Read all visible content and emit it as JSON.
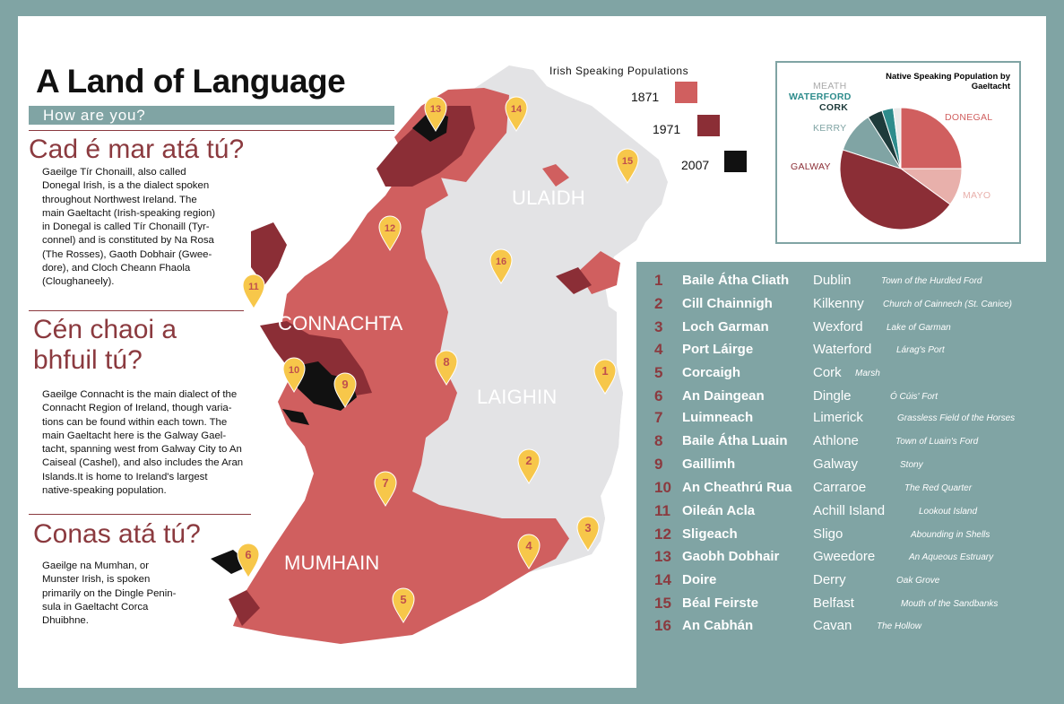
{
  "title": "A Land of Language",
  "subtitle": "How are you?",
  "sections": [
    {
      "heading_lines": [
        "Cad é mar atá tú?"
      ],
      "body_lines": [
        "Gaeilge Tír Chonaill, also called",
        "Donegal Irish, is a the dialect spoken",
        "throughout Northwest Ireland. The",
        "main Gaeltacht (Irish-speaking region)",
        "in Donegal is called Tír Chonaill (Tyr-",
        "connel) and is constituted by Na Rosa",
        "(The Rosses), Gaoth Dobhair (Gwee-",
        "dore), and Cloch Cheann Fhaola",
        "(Cloughaneely)."
      ]
    },
    {
      "heading_lines": [
        "Cén chaoi a",
        "bhfuil tú?"
      ],
      "body_lines": [
        "Gaeilge Connacht is the main dialect of the",
        "Connacht Region of Ireland, though varia-",
        "tions can be found within each town. The",
        "main Gaeltacht here is the Galway Gael-",
        "tacht, spanning west from Galway City to An",
        "Caiseal (Cashel), and also includes the Aran",
        "Islands.It is home to Ireland's largest",
        "native-speaking population."
      ]
    },
    {
      "heading_lines": [
        "Conas atá tú?"
      ],
      "body_lines": [
        "Gaeilge na Mumhan, or",
        "Munster Irish, is spoken",
        "primarily on the Dingle Penin-",
        "sula in Gaeltacht Corca",
        "Dhuibhne."
      ]
    }
  ],
  "regions": {
    "ulster": "ULAIDH",
    "connacht": "CONNACHTA",
    "leinster": "LAIGHIN",
    "munster": "MUMHAIN"
  },
  "legend": {
    "title": "Irish Speaking Populations",
    "items": [
      {
        "year": "1871",
        "color": "#d05f5f"
      },
      {
        "year": "1971",
        "color": "#8b2e36"
      },
      {
        "year": "2007",
        "color": "#111111"
      }
    ]
  },
  "chart_data": {
    "type": "pie",
    "title": "Native Speaking Population by Gaeltacht",
    "slices": [
      {
        "label": "DONEGAL",
        "value": 25,
        "color": "#d05f5f"
      },
      {
        "label": "MAYO",
        "value": 10,
        "color": "#e8b0ab"
      },
      {
        "label": "GALWAY",
        "value": 45,
        "color": "#8b2e36"
      },
      {
        "label": "KERRY",
        "value": 11,
        "color": "#80a4a4"
      },
      {
        "label": "CORK",
        "value": 4,
        "color": "#1e3b3b"
      },
      {
        "label": "WATERFORD",
        "value": 3,
        "color": "#2e8c8c"
      },
      {
        "label": "MEATH",
        "value": 2,
        "color": "#eaeaea"
      }
    ]
  },
  "colors": {
    "light_red": "#d05f5f",
    "dark_red": "#8b2e36",
    "black": "#111111",
    "teal": "#80a4a4",
    "land": "#e3e3e5",
    "marker": "#f7c74a"
  },
  "markers": [
    "1",
    "2",
    "3",
    "4",
    "5",
    "6",
    "7",
    "8",
    "9",
    "10",
    "11",
    "12",
    "13",
    "14",
    "15",
    "16"
  ],
  "places": [
    {
      "num": "1",
      "irish": "Baile Átha Cliath",
      "english": "Dublin",
      "meaning": "Town of the Hurdled Ford"
    },
    {
      "num": "2",
      "irish": "Cill Chainnigh",
      "english": "Kilkenny",
      "meaning": "Church of Cainnech (St. Canice)"
    },
    {
      "num": "3",
      "irish": "Loch Garman",
      "english": "Wexford",
      "meaning": "Lake of Garman"
    },
    {
      "num": "4",
      "irish": "Port Láirge",
      "english": "Waterford",
      "meaning": "Lárag's Port"
    },
    {
      "num": "5",
      "irish": "Corcaigh",
      "english": "Cork",
      "meaning": "Marsh"
    },
    {
      "num": "6",
      "irish": "An Daingean",
      "english": "Dingle",
      "meaning": "Ó Cúis' Fort"
    },
    {
      "num": "7",
      "irish": "Luimneach",
      "english": "Limerick",
      "meaning": "Grassless Field of the Horses"
    },
    {
      "num": "8",
      "irish": "Baile Átha Luain",
      "english": "Athlone",
      "meaning": "Town of Luain's Ford"
    },
    {
      "num": "9",
      "irish": "Gaillimh",
      "english": "Galway",
      "meaning": "Stony"
    },
    {
      "num": "10",
      "irish": "An Cheathrú Rua",
      "english": "Carraroe",
      "meaning": "The Red Quarter"
    },
    {
      "num": "11",
      "irish": "Oileán Acla",
      "english": "Achill Island",
      "meaning": "Lookout Island"
    },
    {
      "num": "12",
      "irish": "Sligeach",
      "english": "Sligo",
      "meaning": "Abounding in Shells"
    },
    {
      "num": "13",
      "irish": "Gaobh Dobhair",
      "english": "Gweedore",
      "meaning": "An Aqueous Estruary"
    },
    {
      "num": "14",
      "irish": "Doire",
      "english": "Derry",
      "meaning": "Oak Grove"
    },
    {
      "num": "15",
      "irish": "Béal Feirste",
      "english": "Belfast",
      "meaning": "Mouth of the Sandbanks"
    },
    {
      "num": "16",
      "irish": "An Cabhán",
      "english": "Cavan",
      "meaning": "The Hollow"
    }
  ]
}
